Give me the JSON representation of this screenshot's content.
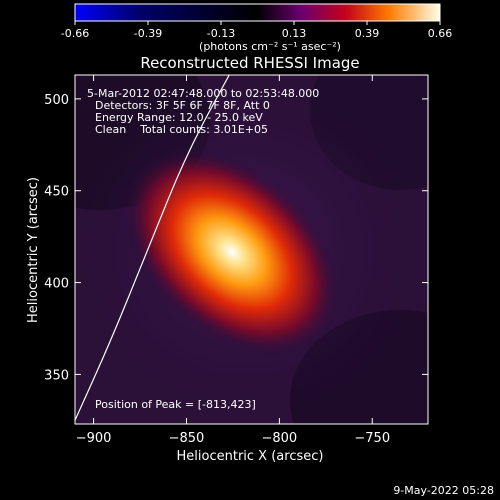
{
  "chart_data": {
    "type": "heatmap",
    "title": "Reconstructed RHESSI Image",
    "xlabel": "Heliocentric X (arcsec)",
    "ylabel": "Heliocentric Y (arcsec)",
    "xlim": [
      -910,
      -720
    ],
    "ylim": [
      323,
      513
    ],
    "xticks": [
      -900,
      -850,
      -800,
      -750
    ],
    "yticks": [
      350,
      400,
      450,
      500
    ],
    "colorbar": {
      "ticks": [
        "-0.66",
        "-0.39",
        "-0.13",
        "0.13",
        "0.39",
        "0.66"
      ],
      "range": [
        -0.66,
        0.66
      ],
      "units": "(photons cm⁻² s⁻¹ asec⁻²)"
    },
    "annotations": {
      "time": "5-Mar-2012 02:47:48.000 to 02:53:48.000",
      "detectors": "Detectors: 3F 5F 6F 7F 8F, Att 0",
      "energy": "Energy Range: 12.0 - 25.0 keV",
      "clean": "Clean    Total counts: 3.01E+05",
      "peak": "Position of Peak = [-813,423]"
    },
    "peak": {
      "x": -813,
      "y": 423
    },
    "limb_points": [
      [
        -910,
        325
      ],
      [
        -890,
        370
      ],
      [
        -870,
        420
      ],
      [
        -850,
        470
      ],
      [
        -827,
        513
      ]
    ]
  },
  "footer": {
    "date": "9-May-2022 05:28"
  },
  "colors": {
    "background": "#000000",
    "axes": "#ffffff",
    "limb": "#ffffff"
  }
}
